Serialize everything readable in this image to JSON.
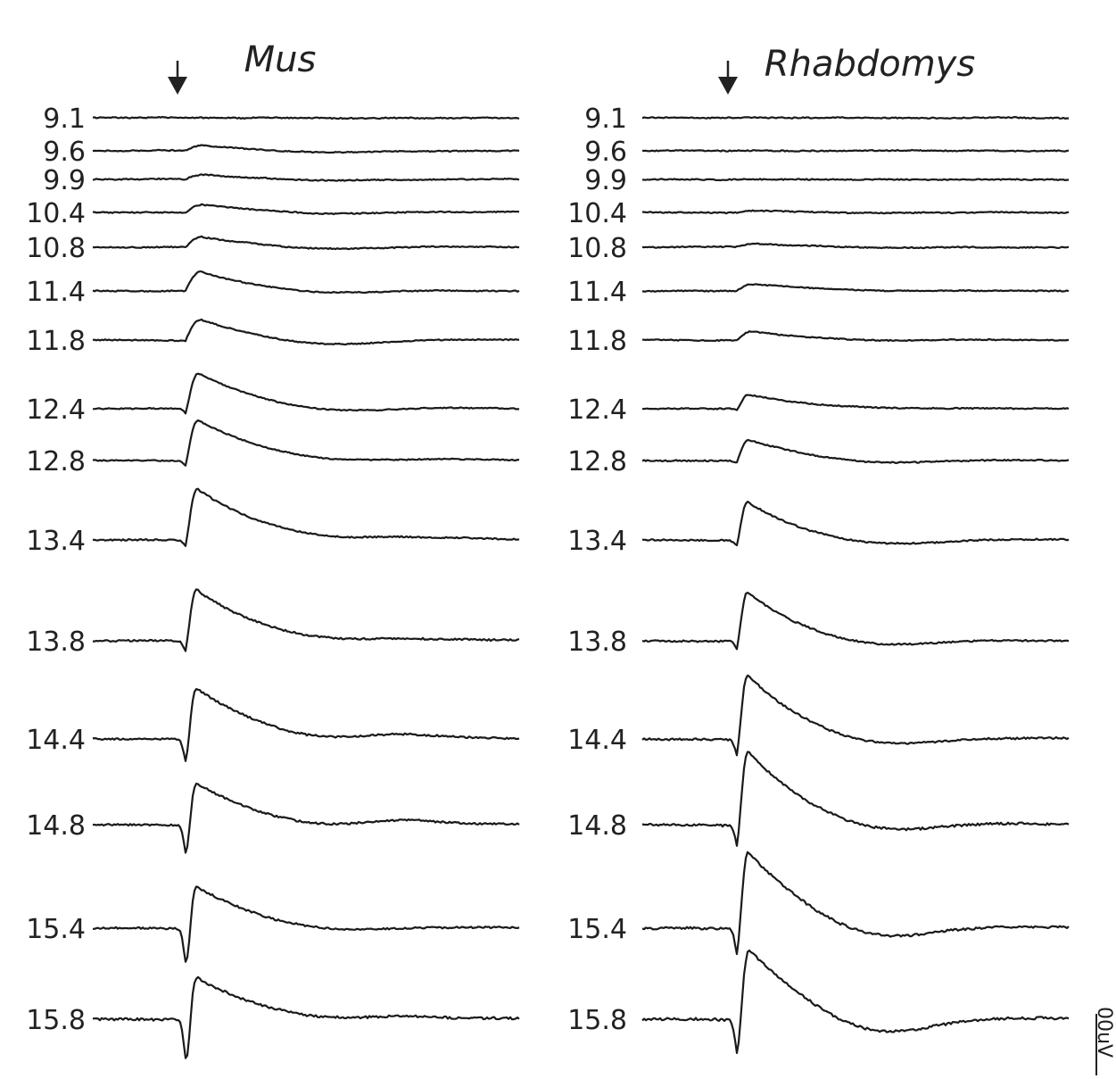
{
  "chart_data": [
    {
      "type": "line",
      "title": "Mus",
      "stimulus_marker": "down-arrow",
      "ylabels": [
        "9.1",
        "9.6",
        "9.9",
        "10.4",
        "10.8",
        "11.4",
        "11.8",
        "12.4",
        "12.8",
        "13.4",
        "13.8",
        "14.4",
        "14.8",
        "15.4",
        "15.8"
      ],
      "series": [
        {
          "label": "9.1",
          "waveform": {
            "pre_dip": 0,
            "peak": 0,
            "rise": 0,
            "decay": 0,
            "undershoot": 0,
            "late_bump": 0,
            "noise": 0.6
          }
        },
        {
          "label": "9.6",
          "waveform": {
            "pre_dip": 0,
            "peak": 6,
            "rise": 0.5,
            "decay": 0.5,
            "undershoot": 3,
            "late_bump": 0,
            "noise": 0.6
          }
        },
        {
          "label": "9.9",
          "waveform": {
            "pre_dip": 0,
            "peak": 5,
            "rise": 0.5,
            "decay": 0.5,
            "undershoot": 2,
            "late_bump": 0,
            "noise": 0.6
          }
        },
        {
          "label": "10.4",
          "waveform": {
            "pre_dip": 0,
            "peak": 9,
            "rise": 0.5,
            "decay": 0.5,
            "undershoot": 3,
            "late_bump": 0,
            "noise": 0.6
          }
        },
        {
          "label": "10.8",
          "waveform": {
            "pre_dip": 0,
            "peak": 12,
            "rise": 0.45,
            "decay": 0.45,
            "undershoot": 4,
            "late_bump": 0,
            "noise": 0.6
          }
        },
        {
          "label": "11.4",
          "waveform": {
            "pre_dip": 0,
            "peak": 22,
            "rise": 0.4,
            "decay": 0.4,
            "undershoot": 5,
            "late_bump": 0,
            "noise": 0.6
          }
        },
        {
          "label": "11.8",
          "waveform": {
            "pre_dip": 0,
            "peak": 24,
            "rise": 0.4,
            "decay": 0.4,
            "undershoot": 8,
            "late_bump": 0,
            "noise": 0.6
          }
        },
        {
          "label": "12.4",
          "waveform": {
            "pre_dip": 6,
            "peak": 40,
            "rise": 0.3,
            "decay": 0.45,
            "undershoot": 8,
            "late_bump": 0,
            "noise": 0.6
          }
        },
        {
          "label": "12.8",
          "waveform": {
            "pre_dip": 6,
            "peak": 46,
            "rise": 0.28,
            "decay": 0.45,
            "undershoot": 6,
            "late_bump": 0,
            "noise": 0.6
          }
        },
        {
          "label": "13.4",
          "waveform": {
            "pre_dip": 8,
            "peak": 58,
            "rise": 0.25,
            "decay": 0.42,
            "undershoot": 5,
            "late_bump": 2,
            "noise": 0.8
          }
        },
        {
          "label": "13.8",
          "waveform": {
            "pre_dip": 12,
            "peak": 58,
            "rise": 0.22,
            "decay": 0.4,
            "undershoot": 6,
            "late_bump": 2,
            "noise": 1.0
          }
        },
        {
          "label": "14.4",
          "waveform": {
            "pre_dip": 28,
            "peak": 58,
            "rise": 0.2,
            "decay": 0.42,
            "undershoot": 8,
            "late_bump": 5,
            "noise": 1.0
          }
        },
        {
          "label": "14.8",
          "waveform": {
            "pre_dip": 36,
            "peak": 48,
            "rise": 0.2,
            "decay": 0.42,
            "undershoot": 8,
            "late_bump": 5,
            "noise": 1.0
          }
        },
        {
          "label": "15.4",
          "waveform": {
            "pre_dip": 44,
            "peak": 48,
            "rise": 0.2,
            "decay": 0.42,
            "undershoot": 8,
            "late_bump": 0,
            "noise": 1.0
          }
        },
        {
          "label": "15.8",
          "waveform": {
            "pre_dip": 52,
            "peak": 48,
            "rise": 0.2,
            "decay": 0.42,
            "undershoot": 6,
            "late_bump": 2,
            "noise": 1.3
          }
        }
      ]
    },
    {
      "type": "line",
      "title": "Rhabdomys",
      "stimulus_marker": "down-arrow",
      "ylabels": [
        "9.1",
        "9.6",
        "9.9",
        "10.4",
        "10.8",
        "11.4",
        "11.8",
        "12.4",
        "12.8",
        "13.4",
        "13.8",
        "14.4",
        "14.8",
        "15.4",
        "15.8"
      ],
      "series": [
        {
          "label": "9.1",
          "waveform": {
            "pre_dip": 0,
            "peak": 0,
            "rise": 0,
            "decay": 0,
            "undershoot": 0,
            "late_bump": 0,
            "noise": 0.6
          }
        },
        {
          "label": "9.6",
          "waveform": {
            "pre_dip": 0,
            "peak": 0,
            "rise": 0,
            "decay": 0,
            "undershoot": 0,
            "late_bump": 0,
            "noise": 0.6
          }
        },
        {
          "label": "9.9",
          "waveform": {
            "pre_dip": 0,
            "peak": 0,
            "rise": 0,
            "decay": 0,
            "undershoot": 0,
            "late_bump": 0,
            "noise": 0.6
          }
        },
        {
          "label": "10.4",
          "waveform": {
            "pre_dip": 0,
            "peak": 2,
            "rise": 0.5,
            "decay": 0.5,
            "undershoot": 1,
            "late_bump": 0,
            "noise": 0.6
          }
        },
        {
          "label": "10.8",
          "waveform": {
            "pre_dip": 0,
            "peak": 4,
            "rise": 0.5,
            "decay": 0.5,
            "undershoot": 1,
            "late_bump": 0,
            "noise": 0.6
          }
        },
        {
          "label": "11.4",
          "waveform": {
            "pre_dip": 0,
            "peak": 8,
            "rise": 0.4,
            "decay": 0.5,
            "undershoot": 1,
            "late_bump": 0,
            "noise": 0.6
          }
        },
        {
          "label": "11.8",
          "waveform": {
            "pre_dip": 0,
            "peak": 10,
            "rise": 0.35,
            "decay": 0.5,
            "undershoot": 2,
            "late_bump": 0,
            "noise": 0.6
          }
        },
        {
          "label": "12.4",
          "waveform": {
            "pre_dip": 2,
            "peak": 16,
            "rise": 0.25,
            "decay": 0.45,
            "undershoot": 2,
            "late_bump": 0,
            "noise": 0.6
          }
        },
        {
          "label": "12.8",
          "waveform": {
            "pre_dip": 2,
            "peak": 24,
            "rise": 0.22,
            "decay": 0.45,
            "undershoot": 6,
            "late_bump": 0,
            "noise": 0.7
          }
        },
        {
          "label": "13.4",
          "waveform": {
            "pre_dip": 6,
            "peak": 44,
            "rise": 0.2,
            "decay": 0.32,
            "undershoot": 8,
            "late_bump": 0,
            "noise": 0.8
          }
        },
        {
          "label": "13.8",
          "waveform": {
            "pre_dip": 10,
            "peak": 56,
            "rise": 0.2,
            "decay": 0.32,
            "undershoot": 10,
            "late_bump": 0,
            "noise": 0.9
          }
        },
        {
          "label": "14.4",
          "waveform": {
            "pre_dip": 20,
            "peak": 74,
            "rise": 0.2,
            "decay": 0.36,
            "undershoot": 14,
            "late_bump": 0,
            "noise": 1.0
          }
        },
        {
          "label": "14.8",
          "waveform": {
            "pre_dip": 26,
            "peak": 84,
            "rise": 0.22,
            "decay": 0.4,
            "undershoot": 16,
            "late_bump": 0,
            "noise": 1.2
          }
        },
        {
          "label": "15.4",
          "waveform": {
            "pre_dip": 32,
            "peak": 88,
            "rise": 0.24,
            "decay": 0.42,
            "undershoot": 22,
            "late_bump": 0,
            "noise": 1.3
          }
        },
        {
          "label": "15.8",
          "waveform": {
            "pre_dip": 42,
            "peak": 80,
            "rise": 0.3,
            "decay": 0.46,
            "undershoot": 28,
            "late_bump": 0,
            "noise": 1.4
          }
        }
      ]
    }
  ],
  "scale_bar_label": "00uV"
}
